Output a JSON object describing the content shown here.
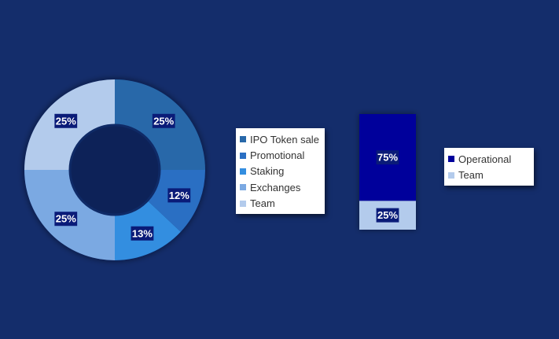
{
  "chart_data": [
    {
      "type": "pie",
      "title": "",
      "categories": [
        "IPO Token sale",
        "Promotional",
        "Staking",
        "Exchanges",
        "Team"
      ],
      "values": [
        25,
        12,
        13,
        25,
        25
      ],
      "labels": [
        "25%",
        "12%",
        "13%",
        "25%",
        "25%"
      ],
      "colors": [
        "#2868a9",
        "#2a6fc3",
        "#338ee0",
        "#7ba9e2",
        "#b3cbec"
      ],
      "donut": true,
      "legend": "right"
    },
    {
      "type": "bar",
      "stacked": true,
      "title": "",
      "categories": [
        ""
      ],
      "series": [
        {
          "name": "Operational",
          "values": [
            75
          ],
          "label": "75%",
          "color": "#00009b"
        },
        {
          "name": "Team",
          "values": [
            25
          ],
          "label": "25%",
          "color": "#b3cbec"
        }
      ],
      "ylim": [
        0,
        100
      ],
      "legend": "right"
    }
  ],
  "label_bg": "#0a1b78",
  "background": "#142d6b"
}
